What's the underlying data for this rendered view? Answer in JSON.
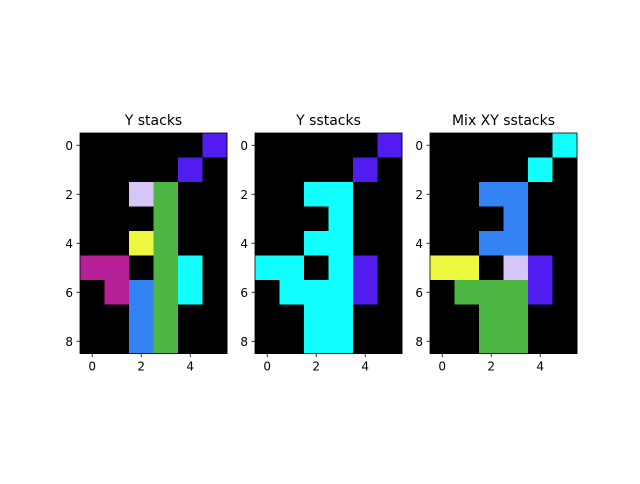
{
  "palette": {
    "0": "#000000",
    "1": "#511cf0",
    "2": "#12ffff",
    "3": "#d6c6f8",
    "4": "#4db541",
    "5": "#ebf83f",
    "6": "#b71f96",
    "7": "#3383f5"
  },
  "chart_data": [
    {
      "type": "heatmap",
      "title": "Y stacks",
      "xticks": [
        0,
        2,
        4
      ],
      "yticks": [
        0,
        2,
        4,
        6,
        8
      ],
      "xlim": [
        -0.5,
        5.5
      ],
      "ylim": [
        8.5,
        -0.5
      ],
      "grid": [
        [
          0,
          0,
          0,
          0,
          0,
          1
        ],
        [
          0,
          0,
          0,
          0,
          1,
          0
        ],
        [
          0,
          0,
          3,
          4,
          0,
          0
        ],
        [
          0,
          0,
          0,
          4,
          0,
          0
        ],
        [
          0,
          0,
          5,
          4,
          0,
          0
        ],
        [
          6,
          6,
          0,
          4,
          2,
          0
        ],
        [
          0,
          6,
          7,
          4,
          2,
          0
        ],
        [
          0,
          0,
          7,
          4,
          0,
          0
        ],
        [
          0,
          0,
          7,
          4,
          0,
          0
        ]
      ]
    },
    {
      "type": "heatmap",
      "title": "Y sstacks",
      "xticks": [
        0,
        2,
        4
      ],
      "yticks": [
        0,
        2,
        4,
        6,
        8
      ],
      "xlim": [
        -0.5,
        5.5
      ],
      "ylim": [
        8.5,
        -0.5
      ],
      "grid": [
        [
          0,
          0,
          0,
          0,
          0,
          1
        ],
        [
          0,
          0,
          0,
          0,
          1,
          0
        ],
        [
          0,
          0,
          2,
          2,
          0,
          0
        ],
        [
          0,
          0,
          0,
          2,
          0,
          0
        ],
        [
          0,
          0,
          2,
          2,
          0,
          0
        ],
        [
          2,
          2,
          0,
          2,
          1,
          0
        ],
        [
          0,
          2,
          2,
          2,
          1,
          0
        ],
        [
          0,
          0,
          2,
          2,
          0,
          0
        ],
        [
          0,
          0,
          2,
          2,
          0,
          0
        ]
      ]
    },
    {
      "type": "heatmap",
      "title": "Mix XY sstacks",
      "xticks": [
        0,
        2,
        4
      ],
      "yticks": [
        0,
        2,
        4,
        6,
        8
      ],
      "xlim": [
        -0.5,
        5.5
      ],
      "ylim": [
        8.5,
        -0.5
      ],
      "grid": [
        [
          0,
          0,
          0,
          0,
          0,
          2
        ],
        [
          0,
          0,
          0,
          0,
          2,
          0
        ],
        [
          0,
          0,
          7,
          7,
          0,
          0
        ],
        [
          0,
          0,
          0,
          7,
          0,
          0
        ],
        [
          0,
          0,
          7,
          7,
          0,
          0
        ],
        [
          5,
          5,
          0,
          3,
          1,
          0
        ],
        [
          0,
          4,
          4,
          4,
          1,
          0
        ],
        [
          0,
          0,
          4,
          4,
          0,
          0
        ],
        [
          0,
          0,
          4,
          4,
          0,
          0
        ]
      ]
    }
  ]
}
